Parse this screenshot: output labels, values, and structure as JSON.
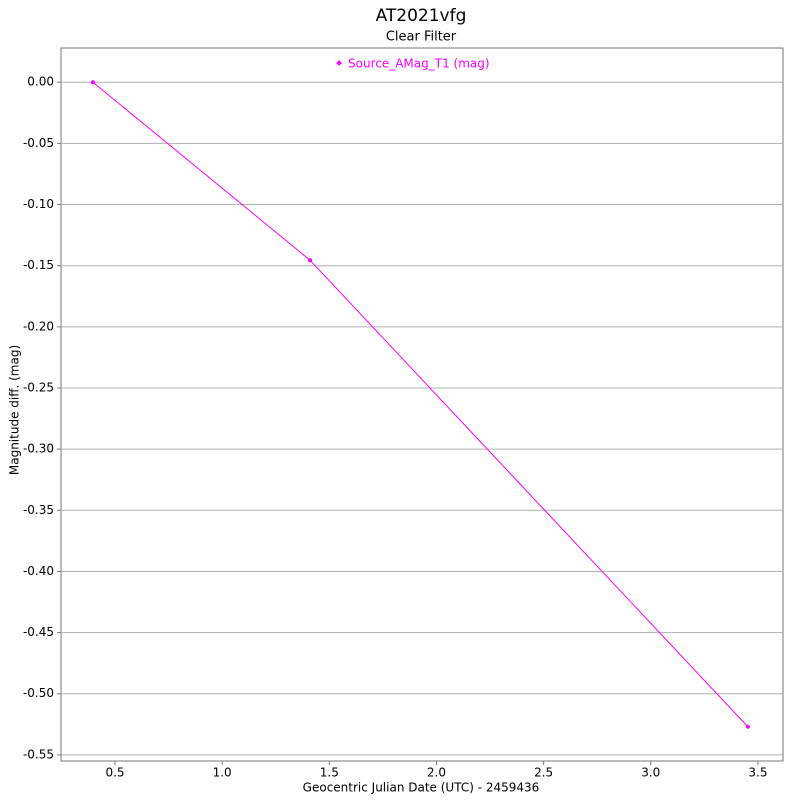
{
  "chart_data": {
    "type": "line",
    "title": "AT2021vfg",
    "subtitle": "Clear Filter",
    "x_label": "Geocentric Julian Date (UTC) - 2459436",
    "y_label": "Magnitude diff. (mag)",
    "x": [
      0.397,
      1.41,
      3.453
    ],
    "series": [
      {
        "name": "Source_AMag_T1 (mag)",
        "color": "#ff00ff",
        "values": [
          0,
          -0.1455,
          -0.527
        ]
      }
    ],
    "xlim": [
      0.248,
      3.617
    ],
    "xticks": [
      0.5,
      {
        "value": 1.0,
        "label": "1.0"
      },
      1.5,
      {
        "value": 2.0,
        "label": "2.0"
      },
      2.5,
      {
        "value": 3.0,
        "label": "3.0"
      },
      3.5
    ],
    "ylim": [
      -0.555,
      0.028
    ],
    "yticks": [
      {
        "value": 0,
        "label": "0.00"
      },
      {
        "value": -0.05,
        "label": "-0.05"
      },
      {
        "value": -0.1,
        "label": "-0.10"
      },
      {
        "value": -0.15,
        "label": "-0.15"
      },
      {
        "value": -0.2,
        "label": "-0.20"
      },
      {
        "value": -0.25,
        "label": "-0.25"
      },
      {
        "value": -0.3,
        "label": "-0.30"
      },
      {
        "value": -0.35,
        "label": "-0.35"
      },
      {
        "value": -0.4,
        "label": "-0.40"
      },
      {
        "value": -0.45,
        "label": "-0.45"
      },
      {
        "value": -0.5,
        "label": "-0.50"
      },
      {
        "value": -0.55,
        "label": "-0.55"
      }
    ],
    "grid": true,
    "legend": "top"
  }
}
